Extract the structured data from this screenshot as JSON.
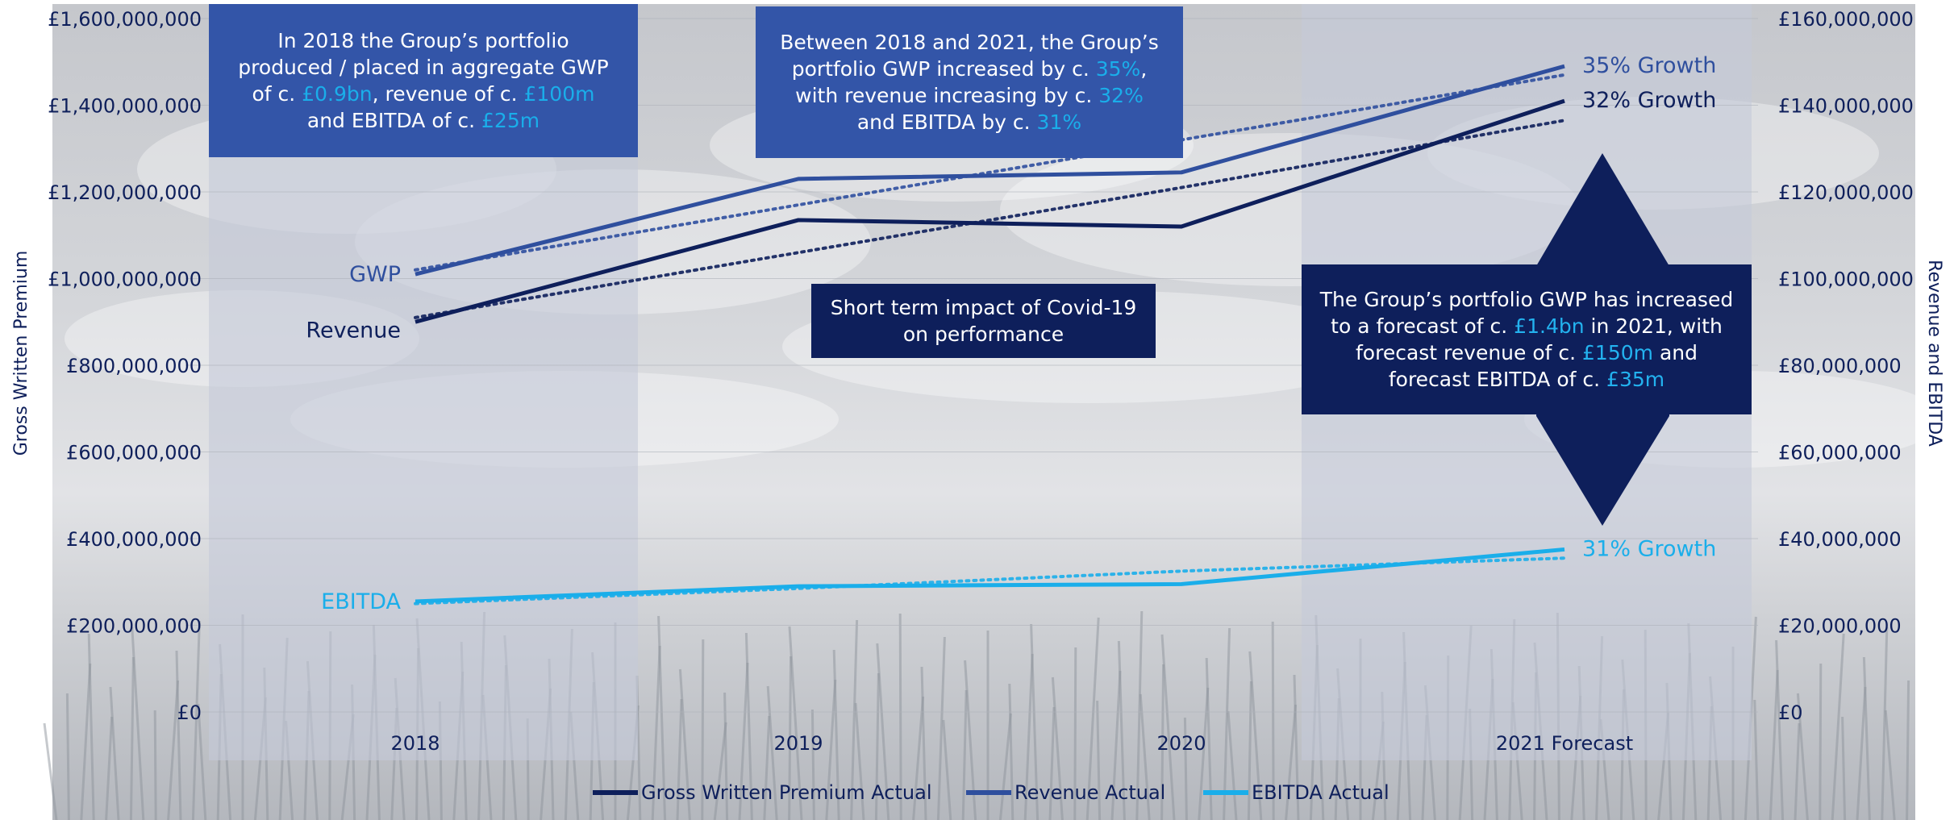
{
  "chart_data": {
    "type": "line",
    "categories": [
      "2018",
      "2019",
      "2020",
      "2021 Forecast"
    ],
    "y_left_label": "Gross Written Premium",
    "y_right_label": "Revenue and EBITDA",
    "ylim_left": [
      0,
      1600000000
    ],
    "ylim_right": [
      0,
      160000000
    ],
    "left_ticks": [
      "£0",
      "£200,000,000",
      "£400,000,000",
      "£600,000,000",
      "£800,000,000",
      "£1,000,000,000",
      "£1,200,000,000",
      "£1,400,000,000",
      "£1,600,000,000"
    ],
    "right_ticks": [
      "£0",
      "£20,000,000",
      "£40,000,000",
      "£60,000,000",
      "£80,000,000",
      "£100,000,000",
      "£120,000,000",
      "£140,000,000",
      "£160,000,000"
    ],
    "grid": true,
    "legend_position": "bottom",
    "series": [
      {
        "name": "Gross Written Premium Actual",
        "axis": "left",
        "color": "#0e1f5b",
        "values": [
          900000000,
          1135000000,
          1120000000,
          1410000000
        ],
        "trend": [
          910000000,
          1060000000,
          1210000000,
          1365000000
        ],
        "end_label": "32% Growth",
        "start_label": "Revenue"
      },
      {
        "name": "Revenue Actual",
        "axis": "right",
        "color": "#2f4f9e",
        "values": [
          101000000,
          123000000,
          124500000,
          149000000
        ],
        "trend": [
          102000000,
          117000000,
          132000000,
          147000000
        ],
        "end_label": "35% Growth",
        "start_label": "GWP"
      },
      {
        "name": "EBITDA Actual",
        "axis": "right",
        "color": "#1aaeea",
        "values": [
          25500000,
          29000000,
          29500000,
          37500000
        ],
        "trend": [
          25000000,
          28500000,
          32500000,
          35500000
        ],
        "end_label": "31% Growth",
        "start_label": "EBITDA"
      }
    ]
  },
  "colors": {
    "dark_navy": "#0e1f5b",
    "mid_blue": "#2f4f9e",
    "light_blue": "#1aaeea",
    "box_blue": "#3355a8",
    "background": "#c8cbd2"
  },
  "annotations": {
    "box_2018": {
      "text1": "In 2018 the Group’s portfolio produced / placed in aggregate GWP of c. ",
      "v1": "£0.9bn",
      "text2": ", revenue of c. ",
      "v2": "£100m",
      "text3": " and EBITDA of c. ",
      "v3": "£25m"
    },
    "box_growth": {
      "text1": "Between 2018 and 2021, the Group’s portfolio GWP increased by c. ",
      "v1": "35%",
      "text2": ", with revenue increasing by c. ",
      "v2": "32%",
      "text3": " and EBITDA by c. ",
      "v3": "31%"
    },
    "box_covid": "Short term impact of Covid-19 on performance",
    "box_forecast": {
      "text1": "The Group’s portfolio GWP has increased to a forecast of c. ",
      "v1": "£1.4bn",
      "text2": " in 2021, with forecast revenue of c. ",
      "v2": "£150m",
      "text3": " and forecast EBITDA of c. ",
      "v3": "£35m"
    }
  }
}
